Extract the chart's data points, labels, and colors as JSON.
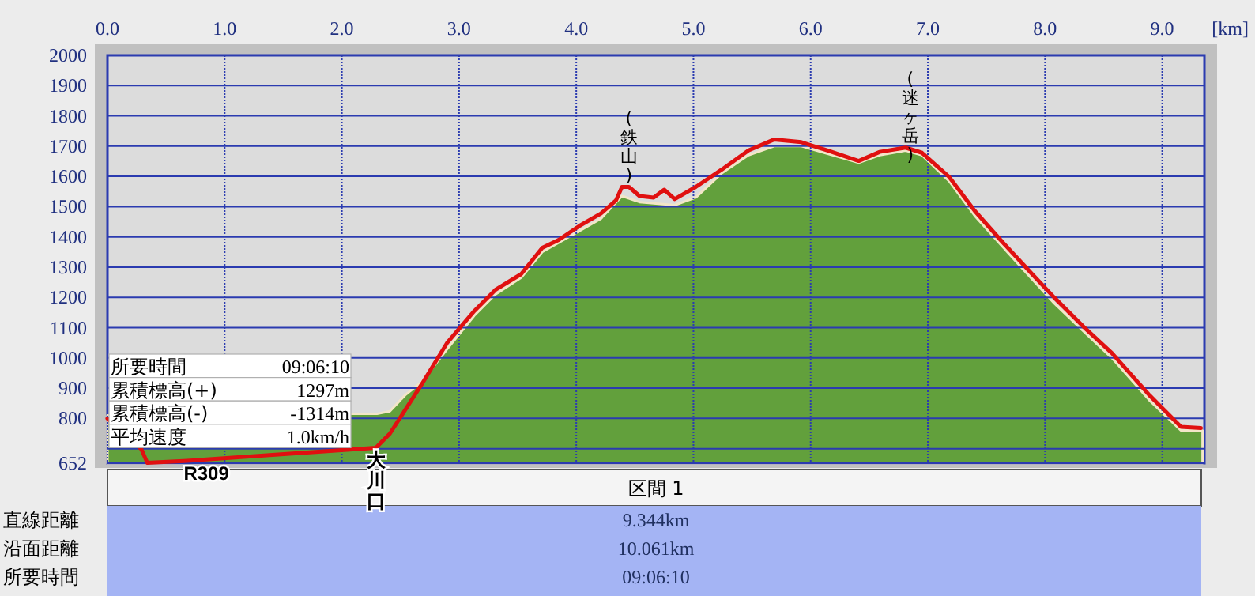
{
  "chart_data": {
    "type": "area",
    "xlabel": "[km]",
    "xlim": [
      0,
      9.36
    ],
    "ylim": [
      652,
      2000
    ],
    "xticks": [
      {
        "value": 0,
        "label": "0.0"
      },
      {
        "value": 1,
        "label": "1.0"
      },
      {
        "value": 2,
        "label": "2.0"
      },
      {
        "value": 3,
        "label": "3.0"
      },
      {
        "value": 4,
        "label": "4.0"
      },
      {
        "value": 5,
        "label": "5.0"
      },
      {
        "value": 6,
        "label": "6.0"
      },
      {
        "value": 7,
        "label": "7.0"
      },
      {
        "value": 8,
        "label": "8.0"
      },
      {
        "value": 9,
        "label": "9.0"
      }
    ],
    "yticks": [
      652,
      {
        "value": 700,
        "label": null
      },
      800,
      900,
      1000,
      1100,
      1200,
      1300,
      1400,
      1500,
      1600,
      1700,
      1800,
      1900,
      2000
    ],
    "grid": true,
    "series": [
      {
        "color": "#62a03c",
        "x": [
          0,
          2.1,
          2.3,
          2.41,
          2.54,
          2.68,
          2.9,
          3.13,
          3.31,
          3.53,
          3.71,
          4.03,
          4.21,
          4.39,
          4.54,
          4.84,
          5.02,
          5.24,
          5.47,
          5.69,
          5.92,
          6.14,
          6.41,
          6.59,
          6.81,
          6.95,
          7.18,
          7.4,
          7.62,
          7.89,
          8.08,
          8.35,
          8.57,
          8.89,
          9.16,
          9.344
        ],
        "values": [
          810,
          815,
          815,
          824,
          877,
          920,
          1030,
          1140,
          1210,
          1265,
          1350,
          1420,
          1460,
          1535,
          1515,
          1505,
          1530,
          1610,
          1670,
          1700,
          1700,
          1675,
          1645,
          1670,
          1685,
          1670,
          1585,
          1470,
          1375,
          1260,
          1180,
          1080,
          1000,
          860,
          760,
          760
        ]
      },
      {
        "type": "line",
        "color": "#e01010",
        "x": [
          0,
          0.29,
          0.34,
          0.65,
          2.29,
          2.41,
          2.68,
          2.9,
          3.13,
          3.31,
          3.53,
          3.71,
          3.85,
          4.03,
          4.21,
          4.34,
          4.39,
          4.45,
          4.54,
          4.66,
          4.75,
          4.84,
          5.02,
          5.24,
          5.47,
          5.69,
          5.92,
          6.14,
          6.41,
          6.59,
          6.81,
          6.95,
          7.18,
          7.4,
          7.62,
          7.89,
          8.08,
          8.35,
          8.57,
          8.89,
          9.16,
          9.33
        ],
        "values": [
          800,
          698,
          653,
          659,
          703,
          750,
          912,
          1051,
          1155,
          1225,
          1277,
          1364,
          1390,
          1437,
          1477,
          1521,
          1565,
          1565,
          1535,
          1530,
          1556,
          1525,
          1565,
          1622,
          1686,
          1722,
          1713,
          1686,
          1651,
          1681,
          1695,
          1678,
          1599,
          1486,
          1390,
          1277,
          1199,
          1095,
          1016,
          877,
          772,
          768
        ]
      }
    ],
    "annotations": [
      {
        "text": "(鉄山)",
        "x": 4.45,
        "y": 1565
      },
      {
        "text": "(迷ヶ岳)",
        "x": 6.85,
        "y": 1695
      },
      {
        "text": "大川口",
        "x": 2.29,
        "y": 703
      },
      {
        "text": "R309",
        "x": 0.65,
        "y": 659
      },
      "所要時間",
      "09:06:10",
      "累積標高(+)",
      "1297m",
      "累積標高(-)",
      "-1314m",
      "平均速度",
      "1.0km/h",
      "区間 1",
      "直線距離",
      "9.344km",
      "沿面距離",
      "10.061km",
      "所要時間",
      "09:06:10"
    ]
  }
}
